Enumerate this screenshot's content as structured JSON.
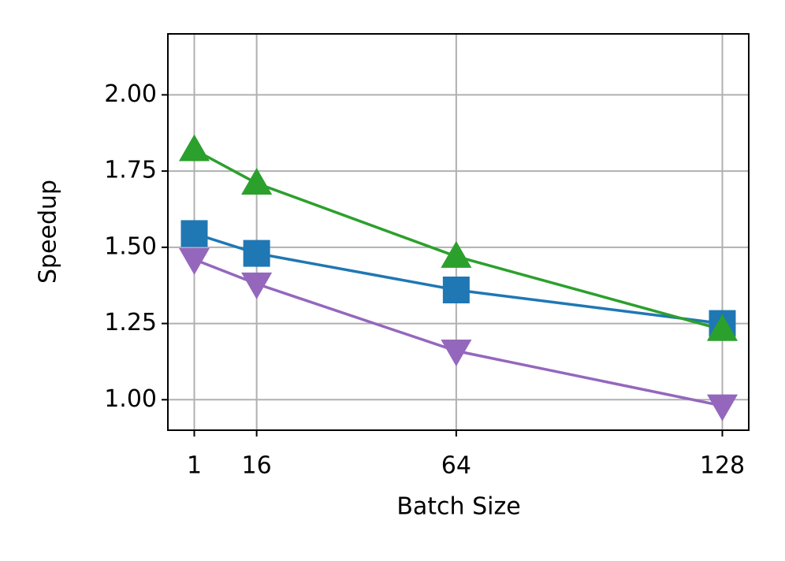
{
  "chart_data": {
    "type": "line",
    "x_label": "Batch Size",
    "y_label": "Speedup",
    "x": [
      1,
      16,
      64,
      128
    ],
    "xlim": [
      -5.35,
      134.35
    ],
    "xticks": [
      1,
      16,
      64,
      128
    ],
    "ylim": [
      0.9,
      2.2
    ],
    "yticks": [
      {
        "value": 1,
        "label": "1.00"
      },
      {
        "value": 1.25,
        "label": "1.25"
      },
      {
        "value": 1.5,
        "label": "1.50"
      },
      {
        "value": 1.75,
        "label": "1.75"
      },
      {
        "value": 2,
        "label": "2.00"
      }
    ],
    "grid": true,
    "series": [
      {
        "color": "#1f77b4",
        "marker": "square",
        "values": [
          1.545,
          1.48,
          1.36,
          1.25
        ]
      },
      {
        "color": "#2ca02c",
        "marker": "triangle-up",
        "values": [
          1.82,
          1.71,
          1.47,
          1.23
        ]
      },
      {
        "color": "#9467bd",
        "marker": "triangle-down",
        "values": [
          1.46,
          1.38,
          1.16,
          0.98
        ]
      }
    ]
  }
}
